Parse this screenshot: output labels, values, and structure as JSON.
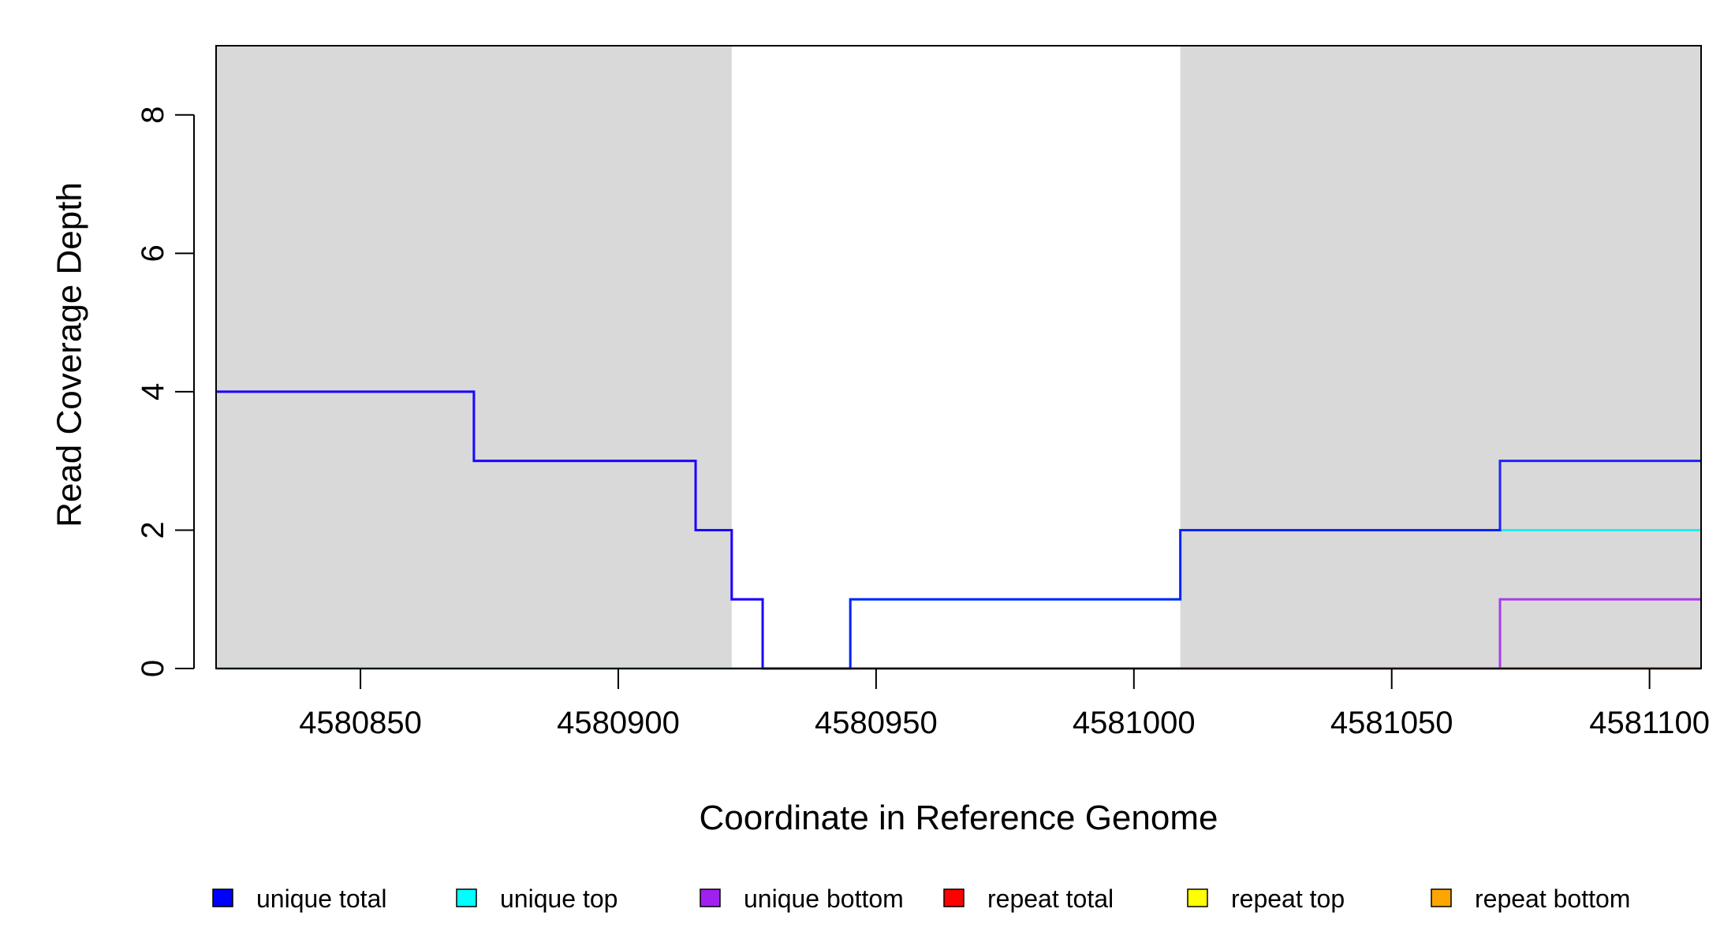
{
  "chart_data": {
    "type": "line",
    "step": true,
    "xlabel": "Coordinate in Reference Genome",
    "ylabel": "Read Coverage Depth",
    "xlim": [
      4580822,
      4581110
    ],
    "ylim": [
      0,
      9
    ],
    "x_ticks": [
      4580850,
      4580900,
      4580950,
      4581000,
      4581050,
      4581100
    ],
    "y_ticks": [
      0,
      2,
      4,
      6,
      8
    ],
    "shaded_regions": [
      {
        "start": 4580822,
        "end": 4580922,
        "color": "#d9d9d9"
      },
      {
        "start": 4581009,
        "end": 4581110,
        "color": "#d9d9d9"
      }
    ],
    "series": [
      {
        "name": "unique total",
        "color": "#0000ff",
        "x": [
          4580822,
          4580872,
          4580915,
          4580922,
          4580928,
          4580945,
          4581009,
          4581071,
          4581110
        ],
        "values": [
          4,
          3,
          2,
          1,
          0,
          1,
          2,
          3,
          3
        ]
      },
      {
        "name": "unique top",
        "color": "#00eeee",
        "x": [
          4580822,
          4580945,
          4581009,
          4581110
        ],
        "values": [
          0,
          1,
          2,
          2
        ]
      },
      {
        "name": "unique bottom",
        "color": "#a020f0",
        "x": [
          4580822,
          4580872,
          4580915,
          4580922,
          4580928,
          4581071,
          4581110
        ],
        "values": [
          4,
          3,
          2,
          1,
          0,
          1,
          1
        ]
      },
      {
        "name": "repeat total",
        "color": "#ff0000",
        "x": [
          4580822,
          4581110
        ],
        "values": [
          0,
          0
        ]
      },
      {
        "name": "repeat top",
        "color": "#ffff00",
        "x": [
          4580822,
          4581110
        ],
        "values": [
          0,
          0
        ]
      },
      {
        "name": "repeat bottom",
        "color": "#ffa500",
        "x": [
          4580822,
          4581110
        ],
        "values": [
          0,
          0
        ]
      }
    ],
    "legend": [
      {
        "label": "unique total",
        "color": "#0000ff"
      },
      {
        "label": "unique top",
        "color": "#00ffff"
      },
      {
        "label": "unique bottom",
        "color": "#a020f0"
      },
      {
        "label": "repeat total",
        "color": "#ff0000"
      },
      {
        "label": "repeat top",
        "color": "#ffff00"
      },
      {
        "label": "repeat bottom",
        "color": "#ffa500"
      }
    ],
    "legend_position": "bottom",
    "grid": false
  }
}
